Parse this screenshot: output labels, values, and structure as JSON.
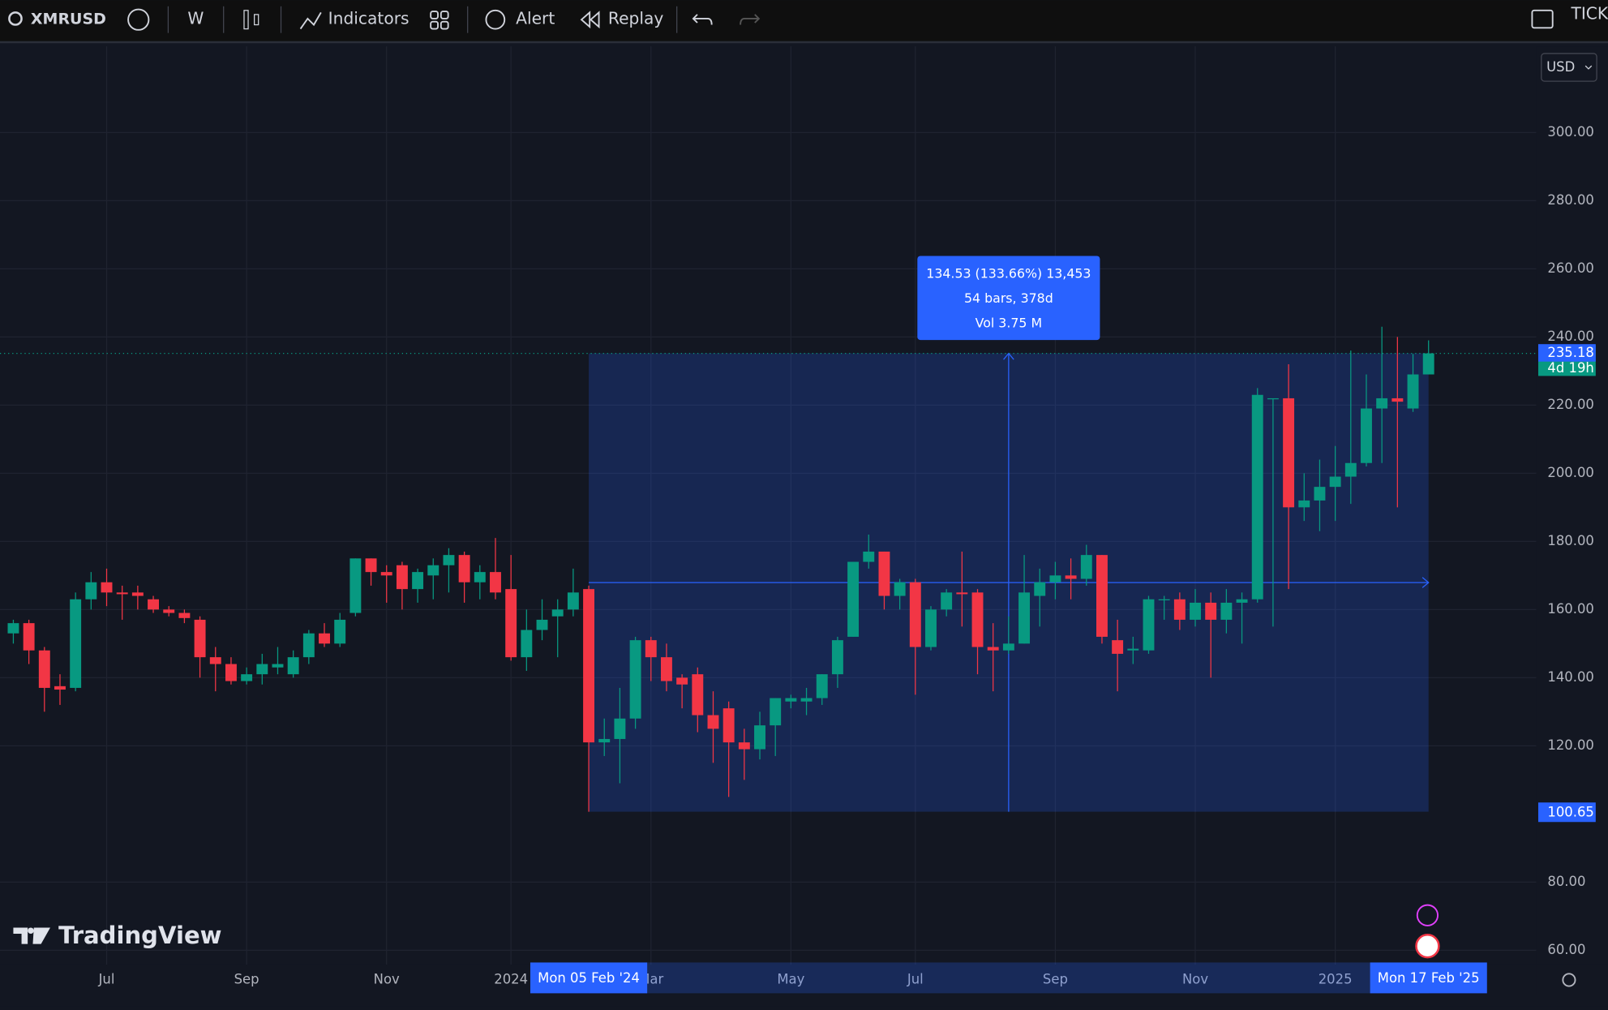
{
  "toolbar": {
    "symbol": "XMRUSD",
    "interval": "W",
    "indicators": "Indicators",
    "alert": "Alert",
    "replay": "Replay",
    "right": "TICK",
    "currency": "USD"
  },
  "logo": "TradingView",
  "chart_data": {
    "type": "candlestick",
    "up_color": "#089981",
    "down_color": "#f23645",
    "categories": [
      null,
      null,
      null,
      null,
      null,
      null,
      "Jul",
      null,
      null,
      null,
      null,
      null,
      null,
      null,
      null,
      "Sep",
      null,
      null,
      null,
      null,
      null,
      null,
      null,
      null,
      "Nov",
      null,
      null,
      null,
      null,
      null,
      null,
      null,
      "2024",
      null,
      null,
      null,
      null,
      "Mon 05 Feb '24",
      null,
      null,
      null,
      "Mar",
      null,
      null,
      null,
      null,
      null,
      null,
      null,
      null,
      "May",
      null,
      null,
      null,
      null,
      null,
      null,
      null,
      "Jul",
      null,
      null,
      null,
      null,
      null,
      null,
      null,
      null,
      "Sep",
      null,
      null,
      null,
      null,
      null,
      null,
      null,
      null,
      "Nov",
      null,
      null,
      null,
      null,
      null,
      null,
      null,
      null,
      "2025",
      null,
      null,
      null,
      null,
      null,
      "Mon 17 Feb '25"
    ],
    "open": [
      153,
      156,
      148,
      137.5,
      137,
      163,
      168,
      165,
      165,
      163,
      160,
      159,
      157,
      146,
      144,
      139,
      141,
      143,
      141,
      146,
      153,
      150,
      159,
      175,
      171,
      173,
      166,
      170,
      173,
      176,
      168,
      171,
      166,
      146,
      154,
      158,
      160,
      166,
      121,
      122,
      128,
      151,
      146,
      140,
      141,
      129,
      131,
      121,
      119,
      126,
      133,
      133,
      134,
      141,
      152,
      174,
      177,
      164,
      168,
      149,
      160,
      165,
      165,
      149,
      148,
      150,
      164,
      168,
      170,
      169,
      176,
      151,
      148,
      148,
      163,
      163,
      157,
      162,
      157,
      162,
      163,
      222,
      222,
      190,
      192,
      196,
      199,
      203,
      219,
      222,
      219,
      229
    ],
    "high": [
      157,
      157,
      149,
      141,
      165,
      171,
      172,
      167,
      167,
      164,
      161,
      160,
      158,
      149,
      146,
      143,
      147,
      149,
      148,
      154,
      156,
      159,
      175,
      175,
      173,
      174,
      172,
      175,
      178,
      177,
      173,
      181,
      176,
      160,
      163,
      163,
      172,
      167,
      128,
      137,
      152,
      152,
      150,
      141,
      143,
      136,
      133,
      125,
      130,
      134,
      135,
      137,
      141,
      152,
      174,
      182,
      177,
      169,
      169,
      161,
      166,
      177,
      166,
      156,
      158,
      176,
      172,
      174,
      175,
      179,
      176,
      157,
      152,
      164,
      164,
      165,
      166,
      165,
      166,
      165,
      225,
      222,
      232,
      200,
      204,
      208,
      236,
      229,
      243,
      240,
      235,
      239
    ],
    "low": [
      150,
      144,
      130,
      132,
      136,
      160,
      161,
      157,
      160,
      159,
      158,
      156,
      140,
      136,
      138,
      138,
      138,
      141,
      140,
      144,
      149,
      149,
      158,
      167,
      162,
      160,
      162,
      163,
      165,
      162,
      163,
      163,
      145,
      142,
      151,
      146,
      158,
      100.65,
      117,
      109,
      125,
      139,
      136,
      131,
      124,
      115,
      105,
      110,
      116,
      117,
      131,
      129,
      132,
      137,
      152,
      172,
      160,
      160,
      135,
      148,
      158,
      155,
      141,
      136,
      147,
      150,
      155,
      163,
      163,
      167,
      150,
      136,
      144,
      147,
      157,
      154,
      155,
      140,
      153,
      150,
      162,
      155,
      166,
      186,
      183,
      186,
      191,
      202,
      203,
      190,
      218,
      229
    ],
    "close": [
      156,
      148,
      137,
      136.5,
      163,
      168,
      165,
      164.5,
      164,
      160,
      159,
      157.5,
      146,
      144,
      139,
      141,
      144,
      144,
      146,
      153,
      150,
      157,
      175,
      171,
      170,
      166,
      171,
      173,
      176,
      168,
      171,
      165,
      146,
      154,
      157,
      160,
      165,
      121,
      122,
      128,
      151,
      146,
      139,
      138,
      129,
      125,
      121,
      119,
      126,
      134,
      134,
      134,
      141,
      151,
      174,
      177,
      164,
      168,
      149,
      160,
      165,
      164.5,
      149,
      148,
      150,
      165,
      168,
      170,
      169,
      176,
      152,
      147,
      148.5,
      163,
      163,
      157,
      162,
      157,
      162,
      163,
      223,
      222,
      190,
      192,
      196,
      199,
      203,
      219,
      222,
      221,
      229,
      235.18
    ],
    "ylim": [
      55.8,
      325.3
    ],
    "yticks": [
      {
        "value": 60,
        "label": "60.00"
      },
      {
        "value": 80,
        "label": "80.00"
      },
      {
        "value": 120,
        "label": "120.00"
      },
      {
        "value": 140,
        "label": "140.00"
      },
      {
        "value": 160,
        "label": "160.00"
      },
      {
        "value": 180,
        "label": "180.00"
      },
      {
        "value": 200,
        "label": "200.00"
      },
      {
        "value": 220,
        "label": "220.00"
      },
      {
        "value": 240,
        "label": "240.00"
      },
      {
        "value": 260,
        "label": "260.00"
      },
      {
        "value": 280,
        "label": "280.00"
      },
      {
        "value": 300,
        "label": "300.00"
      }
    ],
    "grid": true,
    "countdown": "4d 19h",
    "measure": {
      "low": 100.65,
      "high": 235.18,
      "lines": [
        "134.53 (133.66%) 13,453",
        "54 bars, 378d",
        "Vol 3.75 M"
      ]
    }
  }
}
